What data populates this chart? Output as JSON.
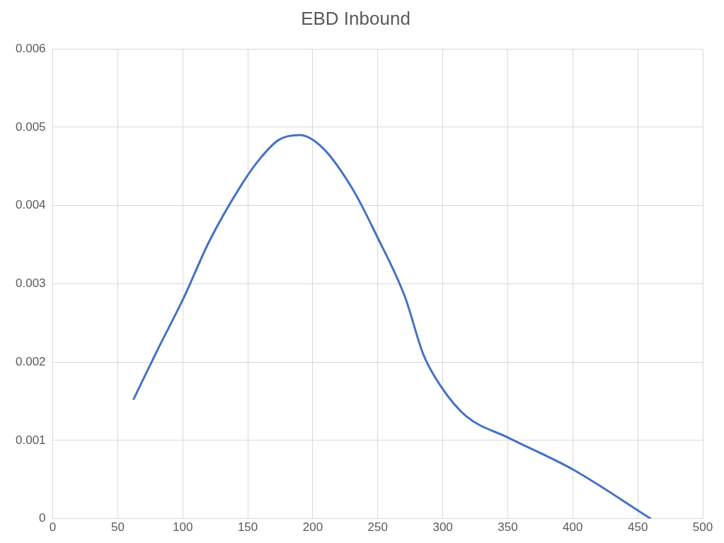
{
  "chart_data": {
    "type": "line",
    "title": "EBD Inbound",
    "series": [
      {
        "color": "#4472c4",
        "x": [
          62,
          81,
          101,
          120,
          145,
          159,
          174,
          190,
          208,
          231,
          249,
          271,
          285,
          299,
          318,
          351,
          401,
          460
        ],
        "values": [
          0.00152,
          0.00217,
          0.00283,
          0.00353,
          0.00426,
          0.00459,
          0.00484,
          0.0049,
          0.00473,
          0.0042,
          0.00362,
          0.00283,
          0.0021,
          0.00168,
          0.00131,
          0.00103,
          0.00062,
          0
        ]
      }
    ],
    "xlim": [
      0,
      500
    ],
    "xticks": [
      0,
      50,
      100,
      150,
      200,
      250,
      300,
      350,
      400,
      450,
      500
    ],
    "ylim": [
      0,
      0.006
    ],
    "yticks": [
      0,
      0.001,
      0.002,
      0.003,
      0.004,
      0.005,
      0.006
    ],
    "grid": true,
    "legend": false,
    "marker": "none",
    "line_style": "solid"
  }
}
